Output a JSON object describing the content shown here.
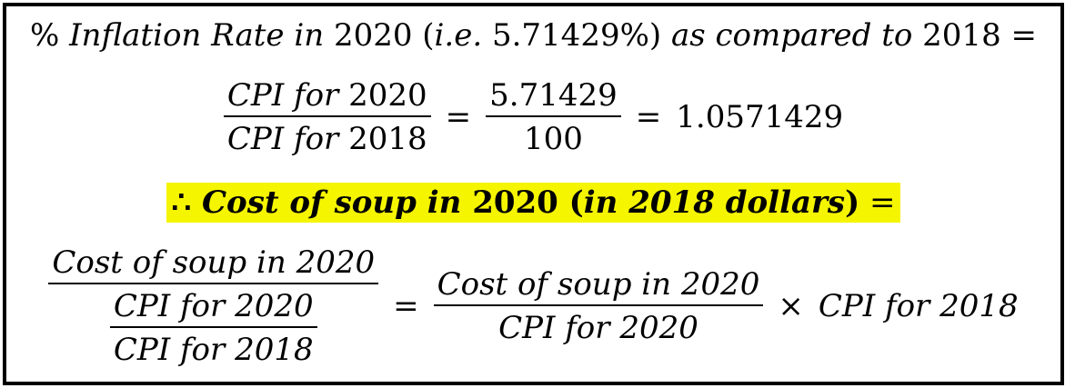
{
  "line1": {
    "text_a": "% ",
    "text_b": "Inflation Rate in ",
    "year_2020": "2020",
    "paren_a": " (",
    "ie": "i.e.",
    "pct": " 5.71429%)",
    "text_c": " as compared to ",
    "year_2018": "2018",
    "eq": " ="
  },
  "line2": {
    "num_a": "CPI for ",
    "num_year": "2020",
    "den_a": "CPI for ",
    "den_year": "2018",
    "eq1": "=",
    "frac2_num": "5.71429",
    "frac2_den": "100",
    "eq2": "=",
    "result": "1.0571429"
  },
  "line3": {
    "therefore": "∴ ",
    "text_a": "Cost of soup in ",
    "year": "2020",
    "paren_open": " (",
    "text_b": "in 2018 dollars",
    "paren_close": ")",
    "eq": " ="
  },
  "line4": {
    "lhs_num": "Cost of soup in 2020",
    "lhs_den_num": "CPI for 2020",
    "lhs_den_den": "CPI for 2018",
    "eq": "=",
    "rhs_num": "Cost of soup in 2020",
    "rhs_den": "CPI for 2020",
    "times": "×",
    "tail": "CPI for 2018"
  },
  "colors": {
    "highlight": "#f5f500",
    "border": "#000000"
  }
}
